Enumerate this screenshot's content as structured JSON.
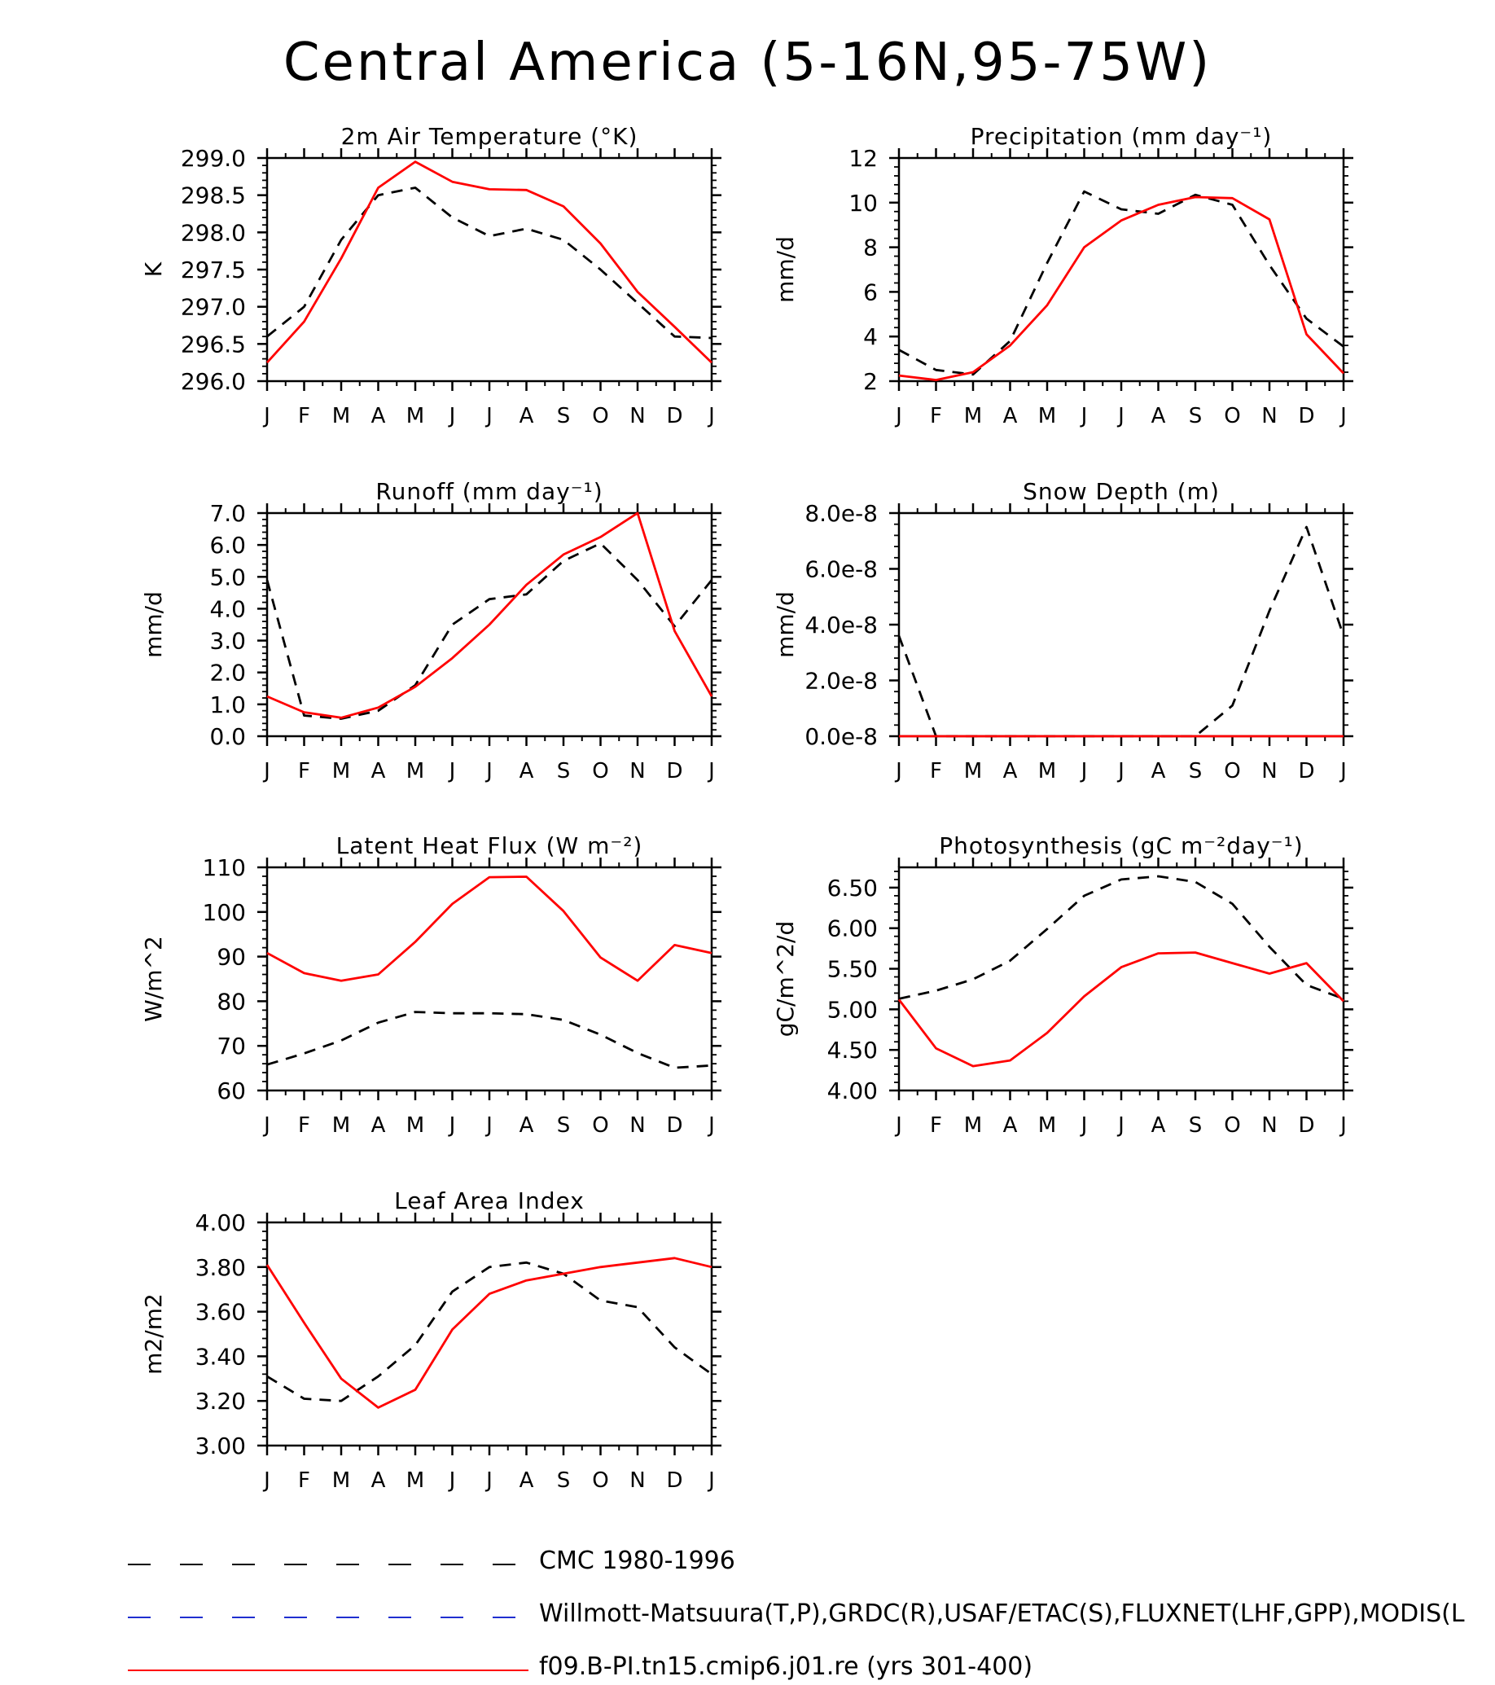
{
  "title": "Central America (5-16N,95-75W)",
  "months": [
    "J",
    "F",
    "M",
    "A",
    "M",
    "J",
    "J",
    "A",
    "S",
    "O",
    "N",
    "D",
    "J"
  ],
  "legend": [
    {
      "label": "CMC 1980-1996",
      "color": "#000000",
      "dashed": true
    },
    {
      "label": "Willmott-Matsuura(T,P),GRDC(R),USAF/ETAC(S),FLUXNET(LHF,GPP),MODIS(L",
      "color": "#1f2fd0",
      "dashed": true
    },
    {
      "label": "f09.B-PI.tn15.cmip6.j01.re (yrs 301-400)",
      "color": "#ff0000",
      "dashed": false
    }
  ],
  "chart_data": [
    {
      "type": "line",
      "title": "2m Air Temperature (°K)",
      "ylabel": "K",
      "ylim": [
        296.0,
        299.0
      ],
      "yticks": [
        "296.0",
        "296.5",
        "297.0",
        "297.5",
        "298.0",
        "298.5",
        "299.0"
      ],
      "x": [
        "J",
        "F",
        "M",
        "A",
        "M",
        "J",
        "J",
        "A",
        "S",
        "O",
        "N",
        "D",
        "J"
      ],
      "series": [
        {
          "name": "CMC 1980-1996",
          "color": "#000000",
          "dashed": true,
          "values": [
            296.6,
            297.0,
            297.9,
            298.5,
            298.6,
            298.2,
            297.95,
            298.05,
            297.9,
            297.5,
            297.05,
            296.6,
            296.58
          ]
        },
        {
          "name": "f09.B-PI.tn15.cmip6.j01.re (yrs 301-400)",
          "color": "#ff0000",
          "dashed": false,
          "values": [
            296.25,
            296.8,
            297.65,
            298.6,
            298.95,
            298.68,
            298.58,
            298.57,
            298.35,
            297.85,
            297.2,
            296.73,
            296.25
          ]
        }
      ]
    },
    {
      "type": "line",
      "title": "Precipitation (mm day⁻¹)",
      "ylabel": "mm/d",
      "ylim": [
        2,
        12
      ],
      "yticks": [
        "2",
        "4",
        "6",
        "8",
        "10",
        "12"
      ],
      "x": [
        "J",
        "F",
        "M",
        "A",
        "M",
        "J",
        "J",
        "A",
        "S",
        "O",
        "N",
        "D",
        "J"
      ],
      "series": [
        {
          "name": "CMC 1980-1996",
          "color": "#000000",
          "dashed": true,
          "values": [
            3.4,
            2.5,
            2.3,
            3.8,
            7.3,
            10.5,
            9.7,
            9.5,
            10.35,
            9.9,
            7.2,
            4.8,
            3.55
          ]
        },
        {
          "name": "f09.B-PI.tn15.cmip6.j01.re (yrs 301-400)",
          "color": "#ff0000",
          "dashed": false,
          "values": [
            2.25,
            2.05,
            2.4,
            3.6,
            5.4,
            8.0,
            9.2,
            9.9,
            10.25,
            10.2,
            9.25,
            4.1,
            2.35
          ]
        }
      ]
    },
    {
      "type": "line",
      "title": "Runoff (mm day⁻¹)",
      "ylabel": "mm/d",
      "ylim": [
        0,
        7
      ],
      "yticks": [
        "0.0",
        "1.0",
        "2.0",
        "3.0",
        "4.0",
        "5.0",
        "6.0",
        "7.0"
      ],
      "x": [
        "J",
        "F",
        "M",
        "A",
        "M",
        "J",
        "J",
        "A",
        "S",
        "O",
        "N",
        "D",
        "J"
      ],
      "series": [
        {
          "name": "CMC 1980-1996",
          "color": "#000000",
          "dashed": true,
          "values": [
            4.9,
            0.65,
            0.55,
            0.8,
            1.6,
            3.5,
            4.3,
            4.45,
            5.5,
            6.05,
            4.9,
            3.45,
            4.9
          ]
        },
        {
          "name": "f09.B-PI.tn15.cmip6.j01.re (yrs 301-400)",
          "color": "#ff0000",
          "dashed": false,
          "values": [
            1.25,
            0.75,
            0.58,
            0.9,
            1.55,
            2.45,
            3.5,
            4.75,
            5.7,
            6.25,
            7.0,
            3.3,
            1.25
          ]
        }
      ]
    },
    {
      "type": "line",
      "title": "Snow Depth (m)",
      "ylabel": "mm/d",
      "ylim": [
        0,
        8e-08
      ],
      "yticks": [
        "0.0e-8",
        "2.0e-8",
        "4.0e-8",
        "6.0e-8",
        "8.0e-8"
      ],
      "x": [
        "J",
        "F",
        "M",
        "A",
        "M",
        "J",
        "J",
        "A",
        "S",
        "O",
        "N",
        "D",
        "J"
      ],
      "series": [
        {
          "name": "CMC 1980-1996",
          "color": "#000000",
          "dashed": true,
          "values": [
            3.6e-08,
            0,
            0,
            0,
            0,
            0,
            0,
            0,
            0,
            1.1e-08,
            4.5e-08,
            7.5e-08,
            3.6e-08
          ]
        },
        {
          "name": "f09.B-PI.tn15.cmip6.j01.re (yrs 301-400)",
          "color": "#ff0000",
          "dashed": false,
          "values": [
            0,
            0,
            0,
            0,
            0,
            0,
            0,
            0,
            0,
            0,
            0,
            0,
            0
          ]
        }
      ]
    },
    {
      "type": "line",
      "title": "Latent Heat Flux (W m⁻²)",
      "ylabel": "W/m^2",
      "ylim": [
        60,
        110
      ],
      "yticks": [
        "60",
        "70",
        "80",
        "90",
        "100",
        "110"
      ],
      "x": [
        "J",
        "F",
        "M",
        "A",
        "M",
        "J",
        "J",
        "A",
        "S",
        "O",
        "N",
        "D",
        "J"
      ],
      "series": [
        {
          "name": "CMC 1980-1996",
          "color": "#000000",
          "dashed": true,
          "values": [
            65.8,
            68.3,
            71.2,
            75.2,
            77.6,
            77.3,
            77.3,
            77.1,
            75.8,
            72.5,
            68.4,
            65.1,
            65.6
          ]
        },
        {
          "name": "f09.B-PI.tn15.cmip6.j01.re (yrs 301-400)",
          "color": "#ff0000",
          "dashed": false,
          "values": [
            90.8,
            86.3,
            84.6,
            86.0,
            93.3,
            101.8,
            107.8,
            107.9,
            100.2,
            89.8,
            84.6,
            92.6,
            90.8
          ]
        }
      ]
    },
    {
      "type": "line",
      "title": "Photosynthesis (gC m⁻²day⁻¹)",
      "ylabel": "gC/m^2/d",
      "ylim": [
        4.0,
        6.75
      ],
      "yticks": [
        "4.00",
        "4.50",
        "5.00",
        "5.50",
        "6.00",
        "6.50"
      ],
      "x": [
        "J",
        "F",
        "M",
        "A",
        "M",
        "J",
        "J",
        "A",
        "S",
        "O",
        "N",
        "D",
        "J"
      ],
      "series": [
        {
          "name": "CMC 1980-1996",
          "color": "#000000",
          "dashed": true,
          "values": [
            5.13,
            5.23,
            5.37,
            5.6,
            5.99,
            6.4,
            6.6,
            6.64,
            6.57,
            6.3,
            5.77,
            5.3,
            5.13
          ]
        },
        {
          "name": "f09.B-PI.tn15.cmip6.j01.re (yrs 301-400)",
          "color": "#ff0000",
          "dashed": false,
          "values": [
            5.12,
            4.52,
            4.3,
            4.37,
            4.71,
            5.16,
            5.52,
            5.69,
            5.7,
            5.57,
            5.44,
            5.57,
            5.1
          ]
        }
      ]
    },
    {
      "type": "line",
      "title": "Leaf Area Index",
      "ylabel": "m2/m2",
      "ylim": [
        3.0,
        4.0
      ],
      "yticks": [
        "3.00",
        "3.20",
        "3.40",
        "3.60",
        "3.80",
        "4.00"
      ],
      "x": [
        "J",
        "F",
        "M",
        "A",
        "M",
        "J",
        "J",
        "A",
        "S",
        "O",
        "N",
        "D",
        "J"
      ],
      "series": [
        {
          "name": "CMC 1980-1996",
          "color": "#000000",
          "dashed": true,
          "values": [
            3.31,
            3.21,
            3.2,
            3.31,
            3.45,
            3.69,
            3.8,
            3.82,
            3.77,
            3.65,
            3.62,
            3.44,
            3.32
          ]
        },
        {
          "name": "f09.B-PI.tn15.cmip6.j01.re (yrs 301-400)",
          "color": "#ff0000",
          "dashed": false,
          "values": [
            3.81,
            3.55,
            3.3,
            3.17,
            3.25,
            3.52,
            3.68,
            3.74,
            3.77,
            3.8,
            3.82,
            3.84,
            3.8
          ]
        }
      ]
    }
  ]
}
